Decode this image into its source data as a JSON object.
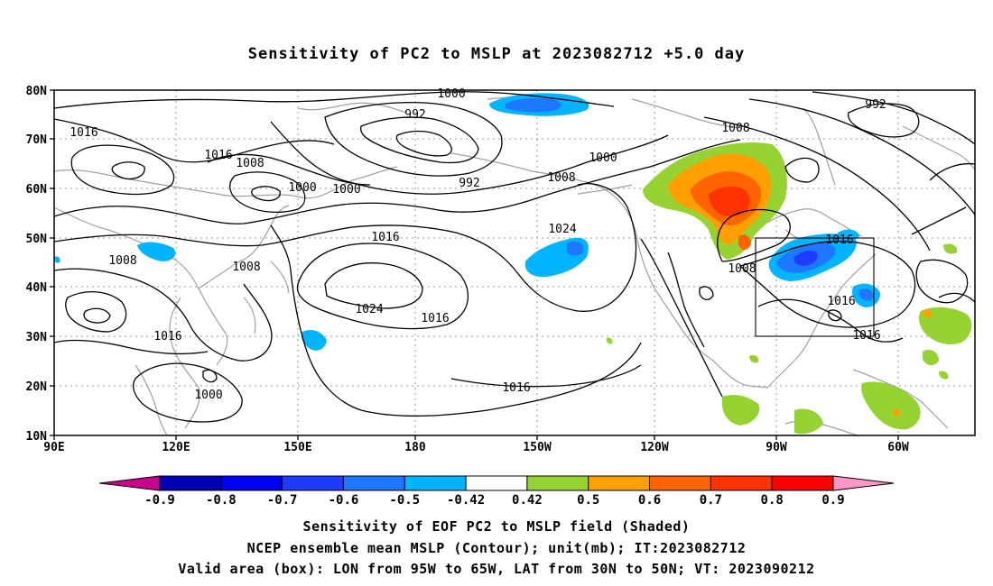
{
  "title": "Sensitivity of PC2 to MSLP at 2023082712 +5.0 day",
  "axes": {
    "lat_labels": [
      "10N",
      "20N",
      "30N",
      "40N",
      "50N",
      "60N",
      "70N",
      "80N"
    ],
    "lon_labels": [
      "90E",
      "120E",
      "150E",
      "180",
      "150W",
      "120W",
      "90W",
      "60W"
    ]
  },
  "contour_labels": [
    {
      "text": "1000"
    },
    {
      "text": "992"
    },
    {
      "text": "1016"
    },
    {
      "text": "1016"
    },
    {
      "text": "1008"
    },
    {
      "text": "1000"
    },
    {
      "text": "1000"
    },
    {
      "text": "992"
    },
    {
      "text": "1008"
    },
    {
      "text": "1000"
    },
    {
      "text": "1008"
    },
    {
      "text": "992"
    },
    {
      "text": "1016"
    },
    {
      "text": "1024"
    },
    {
      "text": "1008"
    },
    {
      "text": "1008"
    },
    {
      "text": "1024"
    },
    {
      "text": "1016"
    },
    {
      "text": "1008"
    },
    {
      "text": "1016"
    },
    {
      "text": "1016"
    },
    {
      "text": "1016"
    },
    {
      "text": "1000"
    },
    {
      "text": "1016"
    }
  ],
  "colorbar": {
    "labels": [
      "-0.9",
      "-0.8",
      "-0.7",
      "-0.6",
      "-0.5",
      "-0.42",
      "0.42",
      "0.5",
      "0.6",
      "0.7",
      "0.8",
      "0.9"
    ],
    "colors": [
      "#c8008c",
      "#0000b4",
      "#0000f5",
      "#1e3cff",
      "#1e78ff",
      "#00b4ff",
      "#ffffff",
      "#96d232",
      "#ffa000",
      "#ff6400",
      "#ff3200",
      "#ff0000",
      "#ff96c8"
    ]
  },
  "captions": {
    "line1": "Sensitivity of EOF PC2 to MSLP field (Shaded)",
    "line2": "NCEP ensemble mean MSLP (Contour); unit(mb); IT:2023082712",
    "line3": "Valid area (box): LON from 95W to 65W, LAT from 30N to 50N; VT: 2023090212"
  }
}
